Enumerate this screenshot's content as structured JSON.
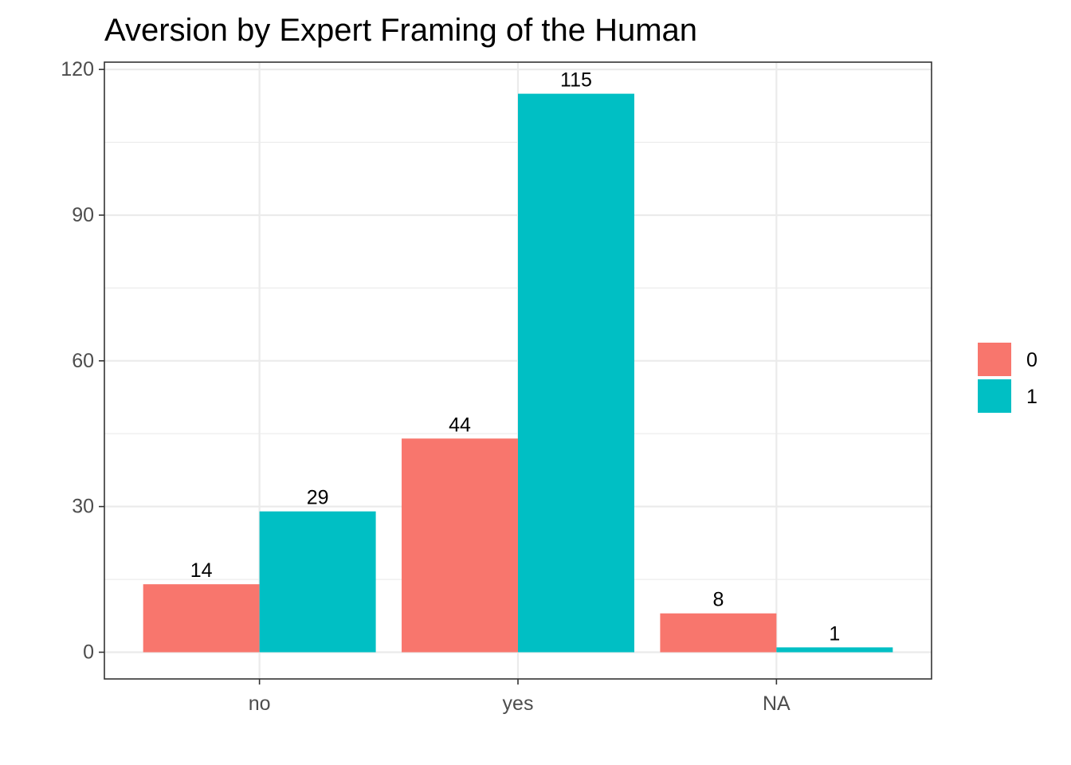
{
  "chart_data": {
    "type": "bar",
    "title": "Aversion by Expert Framing of the Human",
    "xlabel": "",
    "ylabel": "",
    "categories": [
      "no",
      "yes",
      "NA"
    ],
    "series": [
      {
        "name": "0",
        "color": "#F8766D",
        "values": [
          14,
          44,
          8
        ]
      },
      {
        "name": "1",
        "color": "#00BFC4",
        "values": [
          29,
          115,
          1
        ]
      }
    ],
    "ylim": [
      -5.5,
      121.5
    ],
    "yticks": [
      0,
      30,
      60,
      90,
      120
    ],
    "grid": true,
    "legend_position": "right",
    "data_labels": true
  }
}
